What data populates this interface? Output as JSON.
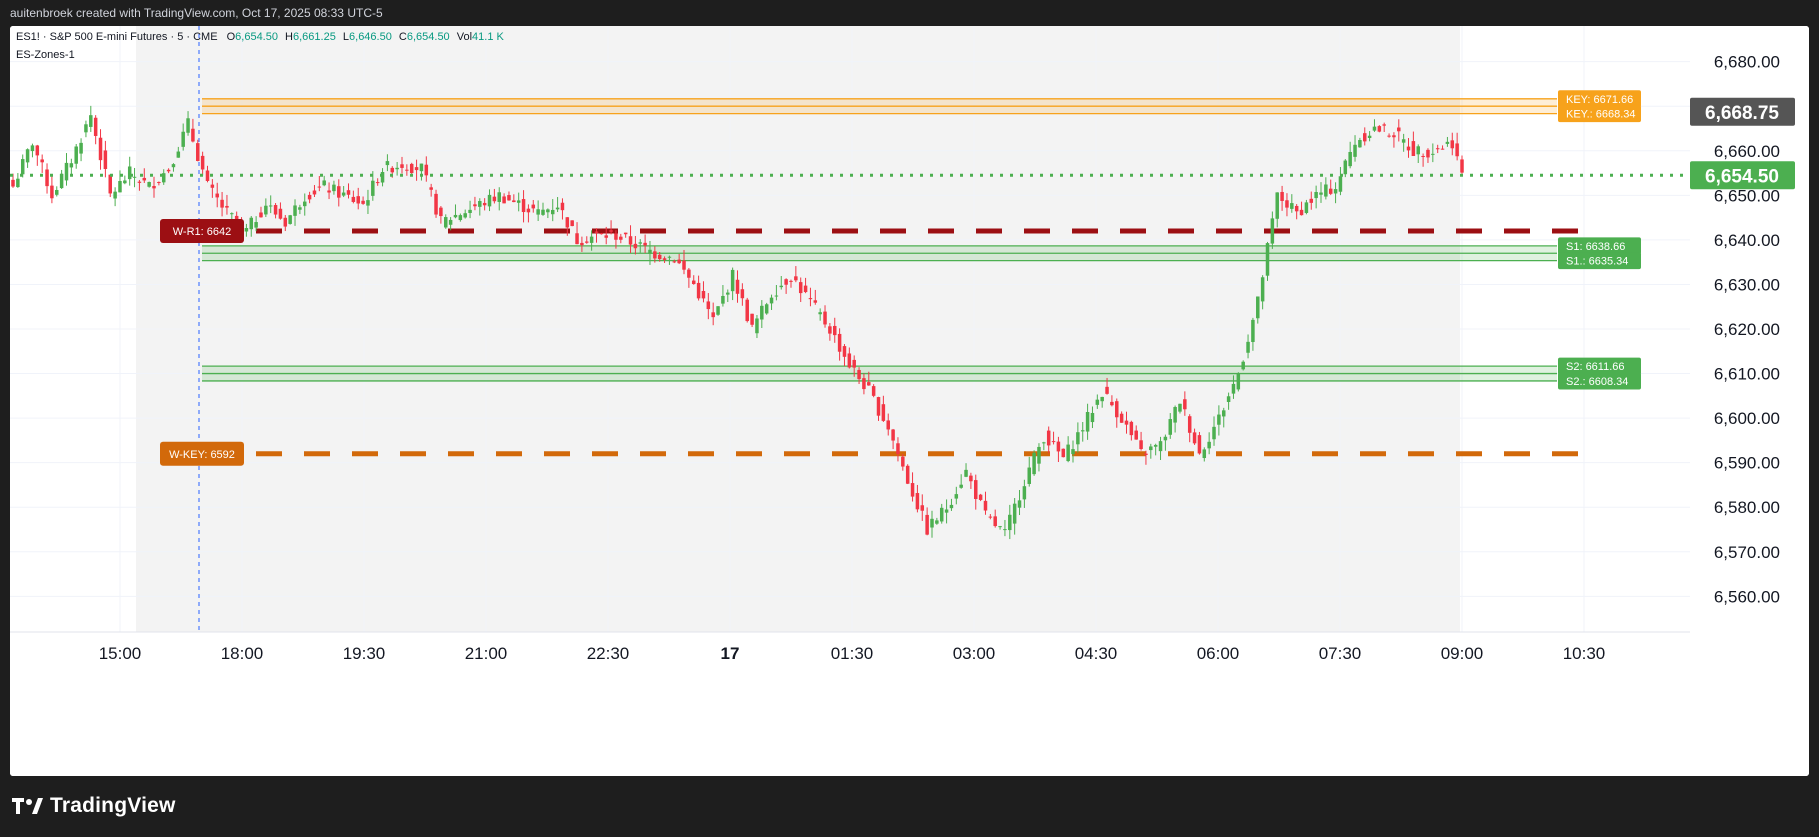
{
  "header": {
    "credit": "auitenbroek created with TradingView.com, Oct 17, 2025 08:33 UTC-5"
  },
  "symbol": {
    "title": "ES1! · S&P 500 E-mini Futures · 5 · CME",
    "open_label": "O",
    "open": "6,654.50",
    "high_label": "H",
    "high": "6,661.25",
    "low_label": "L",
    "low": "6,646.50",
    "close_label": "C",
    "close": "6,654.50",
    "vol_label": "Vol",
    "vol": "41.1 K",
    "indicator": "ES-Zones-1"
  },
  "footer": {
    "brand": "TradingView",
    "logo_icon": "tradingview-logo-icon"
  },
  "colors": {
    "up": "#4caf50",
    "down": "#f23645",
    "key_zone": "#f7a21b",
    "support_zone": "#4caf50",
    "weekly_r1": "#9c0f13",
    "weekly_key": "#d2690a",
    "last_price_tag": "#555555",
    "current_price_tag": "#4caf50"
  },
  "chart_data": {
    "type": "candlestick",
    "symbol": "ES1!",
    "interval": "5",
    "y_axis": {
      "range": [
        6552,
        6688
      ],
      "ticks": [
        "6,680.00",
        "6,670.00",
        "6,660.00",
        "6,650.00",
        "6,640.00",
        "6,630.00",
        "6,620.00",
        "6,610.00",
        "6,600.00",
        "6,590.00",
        "6,580.00",
        "6,570.00",
        "6,560.00"
      ]
    },
    "x_axis": {
      "ticks": [
        {
          "label": "15:00",
          "bold": false
        },
        {
          "label": "18:00",
          "bold": false
        },
        {
          "label": "19:30",
          "bold": false
        },
        {
          "label": "21:00",
          "bold": false
        },
        {
          "label": "22:30",
          "bold": false
        },
        {
          "label": "17",
          "bold": true
        },
        {
          "label": "01:30",
          "bold": false
        },
        {
          "label": "03:00",
          "bold": false
        },
        {
          "label": "04:30",
          "bold": false
        },
        {
          "label": "06:00",
          "bold": false
        },
        {
          "label": "07:30",
          "bold": false
        },
        {
          "label": "09:00",
          "bold": false
        },
        {
          "label": "10:30",
          "bold": false
        }
      ]
    },
    "price_tags": [
      {
        "label": "6,668.75",
        "value": 6668.75,
        "color": "#555555"
      },
      {
        "label": "6,654.50",
        "value": 6654.5,
        "color": "#4caf50"
      }
    ],
    "current_price": 6654.5,
    "zones": [
      {
        "labels": [
          "KEY: 6671.66",
          "KEY.: 6668.34"
        ],
        "upper": 6671.66,
        "lower": 6668.34,
        "color": "#f7a21b"
      },
      {
        "labels": [
          "S1: 6638.66",
          "S1.: 6635.34"
        ],
        "upper": 6638.66,
        "lower": 6635.34,
        "color": "#4caf50"
      },
      {
        "labels": [
          "S2: 6611.66",
          "S2.: 6608.34"
        ],
        "upper": 6611.66,
        "lower": 6608.34,
        "color": "#4caf50"
      }
    ],
    "weekly_levels": [
      {
        "label": "W-R1: 6642",
        "value": 6642,
        "color": "#9c0f13"
      },
      {
        "label": "W-KEY: 6592",
        "value": 6592,
        "color": "#d2690a"
      }
    ],
    "candle_anchors_close": [
      [
        0,
        6652
      ],
      [
        4,
        6662
      ],
      [
        8,
        6650
      ],
      [
        12,
        6658
      ],
      [
        16,
        6668
      ],
      [
        20,
        6650
      ],
      [
        24,
        6655
      ],
      [
        28,
        6652
      ],
      [
        32,
        6656
      ],
      [
        36,
        6666
      ],
      [
        40,
        6652
      ],
      [
        44,
        6646
      ],
      [
        48,
        6642
      ],
      [
        52,
        6648
      ],
      [
        56,
        6644
      ],
      [
        60,
        6650
      ],
      [
        64,
        6652
      ],
      [
        68,
        6650
      ],
      [
        72,
        6648
      ],
      [
        76,
        6656
      ],
      [
        80,
        6657
      ],
      [
        84,
        6656
      ],
      [
        88,
        6644
      ],
      [
        92,
        6646
      ],
      [
        96,
        6648
      ],
      [
        100,
        6650
      ],
      [
        104,
        6648
      ],
      [
        108,
        6646
      ],
      [
        112,
        6648
      ],
      [
        116,
        6640
      ],
      [
        120,
        6641
      ],
      [
        124,
        6641
      ],
      [
        128,
        6639
      ],
      [
        132,
        6637
      ],
      [
        136,
        6636
      ],
      [
        140,
        6630
      ],
      [
        144,
        6622
      ],
      [
        148,
        6632
      ],
      [
        152,
        6620
      ],
      [
        156,
        6628
      ],
      [
        160,
        6632
      ],
      [
        164,
        6626
      ],
      [
        168,
        6620
      ],
      [
        172,
        6612
      ],
      [
        176,
        6606
      ],
      [
        180,
        6598
      ],
      [
        184,
        6586
      ],
      [
        188,
        6575
      ],
      [
        192,
        6580
      ],
      [
        196,
        6588
      ],
      [
        200,
        6578
      ],
      [
        204,
        6574
      ],
      [
        208,
        6586
      ],
      [
        212,
        6596
      ],
      [
        216,
        6591
      ],
      [
        220,
        6598
      ],
      [
        224,
        6606
      ],
      [
        228,
        6600
      ],
      [
        232,
        6592
      ],
      [
        236,
        6594
      ],
      [
        240,
        6604
      ],
      [
        244,
        6592
      ],
      [
        248,
        6600
      ],
      [
        252,
        6610
      ],
      [
        256,
        6626
      ],
      [
        260,
        6650
      ],
      [
        264,
        6646
      ],
      [
        268,
        6650
      ],
      [
        272,
        6652
      ],
      [
        276,
        6662
      ],
      [
        280,
        6665
      ],
      [
        284,
        6664
      ],
      [
        288,
        6660
      ],
      [
        292,
        6660
      ],
      [
        296,
        6662
      ],
      [
        298,
        6654.5
      ]
    ]
  }
}
